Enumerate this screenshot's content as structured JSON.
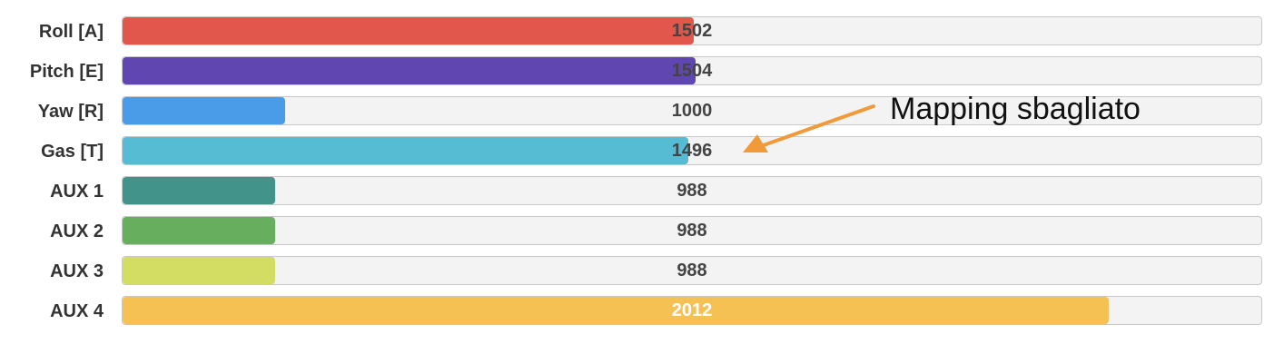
{
  "channels": [
    {
      "label": "Roll [A]",
      "value": 1502,
      "color": "#e2574c",
      "on_fill": false
    },
    {
      "label": "Pitch [E]",
      "value": 1504,
      "color": "#6046b0",
      "on_fill": false
    },
    {
      "label": "Yaw [R]",
      "value": 1000,
      "color": "#4a9be8",
      "on_fill": false
    },
    {
      "label": "Gas [T]",
      "value": 1496,
      "color": "#56bcd3",
      "on_fill": false
    },
    {
      "label": "AUX 1",
      "value": 988,
      "color": "#42938a",
      "on_fill": false
    },
    {
      "label": "AUX 2",
      "value": 988,
      "color": "#67ae5e",
      "on_fill": false
    },
    {
      "label": "AUX 3",
      "value": 988,
      "color": "#d3dc63",
      "on_fill": false
    },
    {
      "label": "AUX 4",
      "value": 2012,
      "color": "#f5c152",
      "on_fill": true
    }
  ],
  "scale": {
    "min": 800,
    "max": 2200
  },
  "annotation": {
    "text": "Mapping sbagliato",
    "arrow_color": "#f09a3a"
  }
}
